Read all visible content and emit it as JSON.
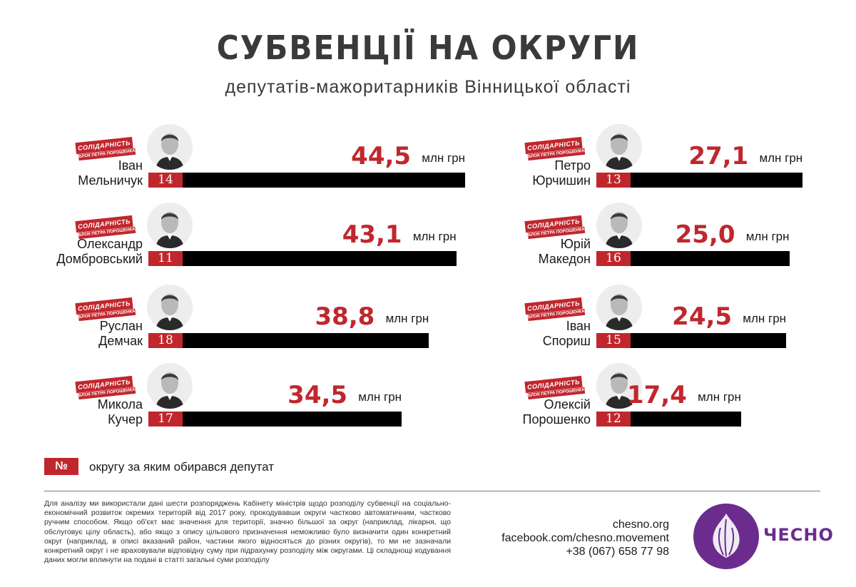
{
  "header": {
    "title": "СУБВЕНЦІЇ НА ОКРУГИ",
    "subtitle": "депутатів-мажоритарників Вінницької області"
  },
  "badge": {
    "main": "СОЛІДАРНІСТЬ",
    "sub": "БЛОК ПЕТРА ПОРОШЕНКА"
  },
  "chart_data": {
    "type": "bar",
    "unit": "млн грн",
    "categories": [
      "Іван Мельничук",
      "Олександр Домбровський",
      "Руслан Демчак",
      "Микола Кучер",
      "Петро Юрчишин",
      "Юрій Македон",
      "Іван Спориш",
      "Олексій Порошенко"
    ],
    "values": [
      44.5,
      43.1,
      38.8,
      34.5,
      27.1,
      25.0,
      24.5,
      17.4
    ],
    "districts": [
      14,
      11,
      18,
      17,
      13,
      16,
      15,
      12
    ]
  },
  "entries": [
    {
      "first": "Іван",
      "last": "Мельничук",
      "district": "14",
      "value_label": "44,5",
      "value": 44.5
    },
    {
      "first": "Олександр",
      "last": "Домбровський",
      "district": "11",
      "value_label": "43,1",
      "value": 43.1
    },
    {
      "first": "Руслан",
      "last": "Демчак",
      "district": "18",
      "value_label": "38,8",
      "value": 38.8
    },
    {
      "first": "Микола",
      "last": "Кучер",
      "district": "17",
      "value_label": "34,5",
      "value": 34.5
    },
    {
      "first": "Петро",
      "last": "Юрчишин",
      "district": "13",
      "value_label": "27,1",
      "value": 27.1
    },
    {
      "first": "Юрій",
      "last": "Македон",
      "district": "16",
      "value_label": "25,0",
      "value": 25.0
    },
    {
      "first": "Іван",
      "last": "Спориш",
      "district": "15",
      "value_label": "24,5",
      "value": 24.5
    },
    {
      "first": "Олексій",
      "last": "Порошенко",
      "district": "12",
      "value_label": "17,4",
      "value": 17.4
    }
  ],
  "unit_label": "млн грн",
  "legend": {
    "symbol": "№",
    "text": "округу за яким обирався депутат"
  },
  "footnote": "Для аналізу ми використали дані шести розпоряджень Кабінету міністрів щодо розподілу субвенції на соціально-економічний розвиток окремих територій від 2017 року, прокодувавши округи частково автоматичним, частково ручним способом. Якщо об'єкт має значення для території, значно більшої за округ (наприклад, лікарня, що обслуговує цілу область), або якщо з опису цільового призначення неможливо було визначити один конкретний округ (наприклад, в описі вказаний район, частини якого відносяться до різних округів), то ми не зазначали конкретний округ і не враховували відповідну суму при підрахунку розподілу між округами. Ці складнощі кодування даних могли вплинути на подані в статті загальні суми розподілу",
  "contacts": {
    "site": "chesno.org",
    "facebook": "facebook.com/chesno.movement",
    "phone": "+38 (067) 658 77 98"
  },
  "logo": {
    "text": "ЧЕСНО"
  },
  "colors": {
    "accent": "#c0272d",
    "bar": "#000000",
    "brand": "#6b2c8e"
  }
}
